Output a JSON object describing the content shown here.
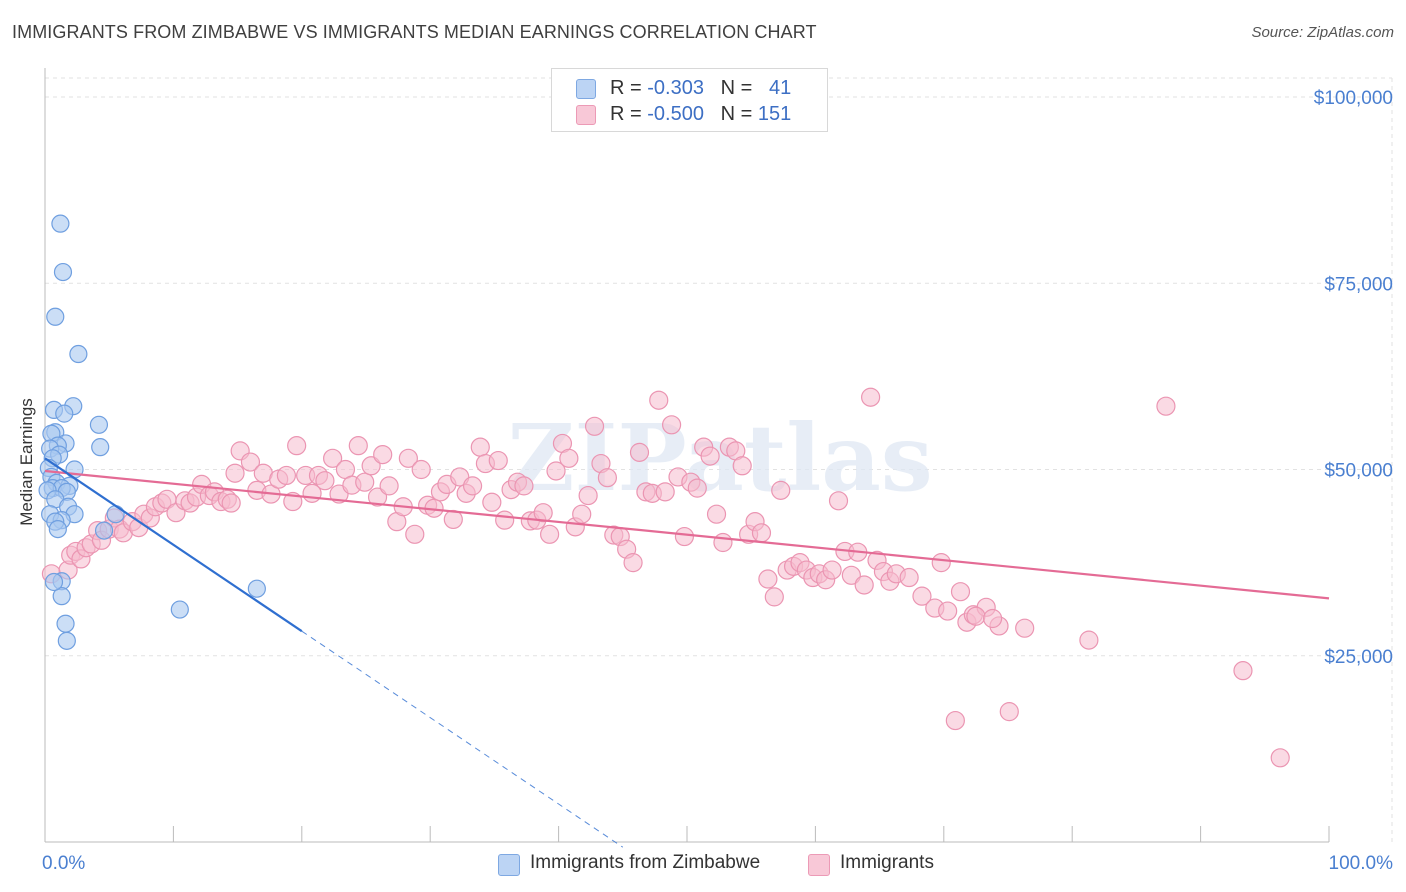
{
  "title": "IMMIGRANTS FROM ZIMBABWE VS IMMIGRANTS MEDIAN EARNINGS CORRELATION CHART",
  "source": "Source: ZipAtlas.com",
  "watermark": "ZIPatlas",
  "legend": {
    "series1": {
      "r_label": "R = ",
      "r_value": "-0.303",
      "n_label": "N = ",
      "n_value": "41"
    },
    "series2": {
      "r_label": "R = ",
      "r_value": "-0.500",
      "n_label": "N = ",
      "n_value": "151"
    }
  },
  "bottom_legend": {
    "series1": "Immigrants from Zimbabwe",
    "series2": "Immigrants"
  },
  "colors": {
    "blue_fill": "#a9c8f0",
    "blue_stroke": "#6f9fe0",
    "blue_line": "#2f6fd0",
    "pink_fill": "#f6bccd",
    "pink_stroke": "#eb95b2",
    "pink_line": "#e46b95",
    "grid": "#e2e2e2",
    "tick_text": "#4a7fd0"
  },
  "chart_data": {
    "type": "scatter",
    "title": "IMMIGRANTS FROM ZIMBABWE VS IMMIGRANTS MEDIAN EARNINGS CORRELATION CHART",
    "xlabel": "",
    "ylabel": "Median Earnings",
    "xlim": [
      0,
      100
    ],
    "ylim": [
      0,
      105000
    ],
    "x_tick_labels": [
      "0.0%",
      "100.0%"
    ],
    "y_ticks": [
      {
        "value": 25000,
        "label": "$25,000"
      },
      {
        "value": 50000,
        "label": "$50,000"
      },
      {
        "value": 75000,
        "label": "$75,000"
      },
      {
        "value": 100000,
        "label": "$100,000"
      }
    ],
    "series": [
      {
        "name": "Immigrants from Zimbabwe",
        "r": -0.303,
        "n": 41,
        "trend": {
          "x0": 0,
          "y0": 51500,
          "x1": 20,
          "y1": 28300,
          "dash_to_x": 45
        },
        "points": [
          [
            1.2,
            83000
          ],
          [
            1.4,
            76500
          ],
          [
            0.8,
            70500
          ],
          [
            2.6,
            65500
          ],
          [
            2.2,
            58500
          ],
          [
            0.7,
            58000
          ],
          [
            1.5,
            57500
          ],
          [
            4.2,
            56000
          ],
          [
            0.8,
            55000
          ],
          [
            0.5,
            54800
          ],
          [
            1.6,
            53500
          ],
          [
            1.0,
            53200
          ],
          [
            4.3,
            53000
          ],
          [
            0.4,
            52800
          ],
          [
            1.1,
            52000
          ],
          [
            0.6,
            51500
          ],
          [
            2.3,
            50000
          ],
          [
            0.3,
            50200
          ],
          [
            0.5,
            49000
          ],
          [
            0.9,
            48200
          ],
          [
            1.9,
            47800
          ],
          [
            0.6,
            47500
          ],
          [
            1.3,
            47500
          ],
          [
            0.2,
            47200
          ],
          [
            1.7,
            47000
          ],
          [
            0.8,
            46000
          ],
          [
            1.8,
            45000
          ],
          [
            0.4,
            44000
          ],
          [
            5.5,
            44000
          ],
          [
            2.3,
            44000
          ],
          [
            1.3,
            43200
          ],
          [
            0.8,
            43000
          ],
          [
            4.6,
            41800
          ],
          [
            1.0,
            42000
          ],
          [
            1.3,
            35000
          ],
          [
            1.3,
            33000
          ],
          [
            16.5,
            34000
          ],
          [
            10.5,
            31200
          ],
          [
            1.6,
            29300
          ],
          [
            1.7,
            27000
          ],
          [
            0.7,
            34900
          ]
        ]
      },
      {
        "name": "Immigrants",
        "r": -0.5,
        "n": 151,
        "trend": {
          "x0": 0,
          "y0": 49800,
          "x1": 100,
          "y1": 32700
        },
        "points": [
          [
            0.5,
            36000
          ],
          [
            1.8,
            36500
          ],
          [
            2.0,
            38500
          ],
          [
            2.4,
            39000
          ],
          [
            2.8,
            38000
          ],
          [
            3.2,
            39500
          ],
          [
            3.6,
            40000
          ],
          [
            4.1,
            41800
          ],
          [
            4.4,
            40500
          ],
          [
            5.0,
            42000
          ],
          [
            5.4,
            43500
          ],
          [
            5.8,
            42000
          ],
          [
            6.1,
            41500
          ],
          [
            6.8,
            43000
          ],
          [
            7.3,
            42200
          ],
          [
            7.7,
            44000
          ],
          [
            8.2,
            43500
          ],
          [
            8.6,
            45000
          ],
          [
            9.1,
            45500
          ],
          [
            9.5,
            46000
          ],
          [
            10.2,
            44200
          ],
          [
            10.9,
            45800
          ],
          [
            11.3,
            45500
          ],
          [
            11.8,
            46300
          ],
          [
            12.2,
            48000
          ],
          [
            12.8,
            46500
          ],
          [
            13.2,
            47000
          ],
          [
            13.7,
            45700
          ],
          [
            14.2,
            46000
          ],
          [
            14.5,
            45500
          ],
          [
            14.8,
            49500
          ],
          [
            15.2,
            52500
          ],
          [
            16.0,
            51000
          ],
          [
            16.5,
            47200
          ],
          [
            17.0,
            49500
          ],
          [
            17.6,
            46700
          ],
          [
            18.2,
            48700
          ],
          [
            18.8,
            49200
          ],
          [
            19.3,
            45700
          ],
          [
            19.6,
            53200
          ],
          [
            20.3,
            49200
          ],
          [
            20.8,
            46800
          ],
          [
            21.3,
            49200
          ],
          [
            21.8,
            48500
          ],
          [
            22.4,
            51500
          ],
          [
            22.9,
            46700
          ],
          [
            23.4,
            50000
          ],
          [
            23.9,
            47900
          ],
          [
            24.4,
            53200
          ],
          [
            24.9,
            48300
          ],
          [
            25.4,
            50500
          ],
          [
            25.9,
            46300
          ],
          [
            26.3,
            52000
          ],
          [
            26.8,
            47800
          ],
          [
            27.4,
            43000
          ],
          [
            27.9,
            45000
          ],
          [
            28.3,
            51500
          ],
          [
            28.8,
            41300
          ],
          [
            29.3,
            50000
          ],
          [
            29.8,
            45200
          ],
          [
            30.3,
            44800
          ],
          [
            30.8,
            47000
          ],
          [
            31.3,
            48000
          ],
          [
            31.8,
            43300
          ],
          [
            32.3,
            49000
          ],
          [
            32.8,
            46800
          ],
          [
            33.3,
            47800
          ],
          [
            33.9,
            53000
          ],
          [
            34.3,
            50800
          ],
          [
            34.8,
            45600
          ],
          [
            35.3,
            51200
          ],
          [
            35.8,
            43200
          ],
          [
            36.3,
            47300
          ],
          [
            36.8,
            48300
          ],
          [
            37.3,
            47800
          ],
          [
            37.8,
            43100
          ],
          [
            38.3,
            43200
          ],
          [
            38.8,
            44200
          ],
          [
            39.3,
            41300
          ],
          [
            39.8,
            49800
          ],
          [
            40.3,
            53500
          ],
          [
            40.8,
            51500
          ],
          [
            41.3,
            42300
          ],
          [
            41.8,
            44000
          ],
          [
            42.3,
            46500
          ],
          [
            42.8,
            55800
          ],
          [
            43.3,
            50800
          ],
          [
            43.8,
            48900
          ],
          [
            44.3,
            41200
          ],
          [
            44.8,
            41000
          ],
          [
            45.3,
            39300
          ],
          [
            45.8,
            37500
          ],
          [
            46.3,
            52300
          ],
          [
            46.8,
            47000
          ],
          [
            47.3,
            46800
          ],
          [
            47.8,
            59300
          ],
          [
            48.3,
            47000
          ],
          [
            48.8,
            56000
          ],
          [
            49.3,
            49000
          ],
          [
            49.8,
            41000
          ],
          [
            50.3,
            48300
          ],
          [
            50.8,
            47500
          ],
          [
            51.3,
            53000
          ],
          [
            51.8,
            51800
          ],
          [
            52.3,
            44000
          ],
          [
            52.8,
            40200
          ],
          [
            53.3,
            53000
          ],
          [
            53.8,
            52500
          ],
          [
            54.3,
            50500
          ],
          [
            54.8,
            41300
          ],
          [
            55.3,
            43000
          ],
          [
            55.8,
            41500
          ],
          [
            56.3,
            35300
          ],
          [
            56.8,
            32900
          ],
          [
            57.3,
            47200
          ],
          [
            57.8,
            36500
          ],
          [
            58.3,
            37000
          ],
          [
            58.8,
            37500
          ],
          [
            59.3,
            36500
          ],
          [
            59.8,
            35500
          ],
          [
            60.3,
            36000
          ],
          [
            60.8,
            35200
          ],
          [
            61.3,
            36500
          ],
          [
            61.8,
            45800
          ],
          [
            62.3,
            39000
          ],
          [
            62.8,
            35800
          ],
          [
            63.3,
            38900
          ],
          [
            63.8,
            34500
          ],
          [
            64.3,
            59700
          ],
          [
            64.8,
            37800
          ],
          [
            65.3,
            36300
          ],
          [
            65.8,
            35000
          ],
          [
            66.3,
            36000
          ],
          [
            67.3,
            35500
          ],
          [
            68.3,
            33000
          ],
          [
            69.3,
            31400
          ],
          [
            69.8,
            37500
          ],
          [
            70.3,
            31000
          ],
          [
            71.3,
            33600
          ],
          [
            71.8,
            29500
          ],
          [
            72.3,
            30500
          ],
          [
            73.3,
            31500
          ],
          [
            74.3,
            29000
          ],
          [
            76.3,
            28700
          ],
          [
            81.3,
            27100
          ],
          [
            87.3,
            58500
          ],
          [
            93.3,
            23000
          ],
          [
            72.5,
            30300
          ],
          [
            73.8,
            30000
          ],
          [
            96.2,
            11300
          ],
          [
            75.1,
            17500
          ],
          [
            70.9,
            16300
          ]
        ]
      }
    ]
  }
}
